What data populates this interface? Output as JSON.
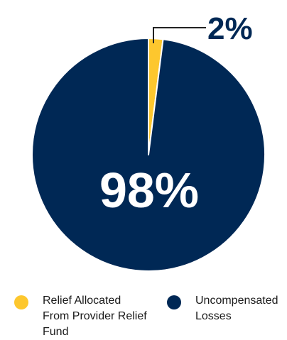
{
  "chart_data": {
    "type": "pie",
    "categories": [
      "Relief Allocated From Provider Relief Fund",
      "Uncompensated Losses"
    ],
    "values": [
      2,
      98
    ],
    "labels": [
      "2%",
      "98%"
    ],
    "colors": [
      "#fdc72e",
      "#002855"
    ],
    "legend_position": "bottom"
  },
  "legend": [
    {
      "label": "Relief Allocated From Provider Relief Fund",
      "color": "#fdc72e"
    },
    {
      "label": "Uncompensated Losses",
      "color": "#002855"
    }
  ]
}
